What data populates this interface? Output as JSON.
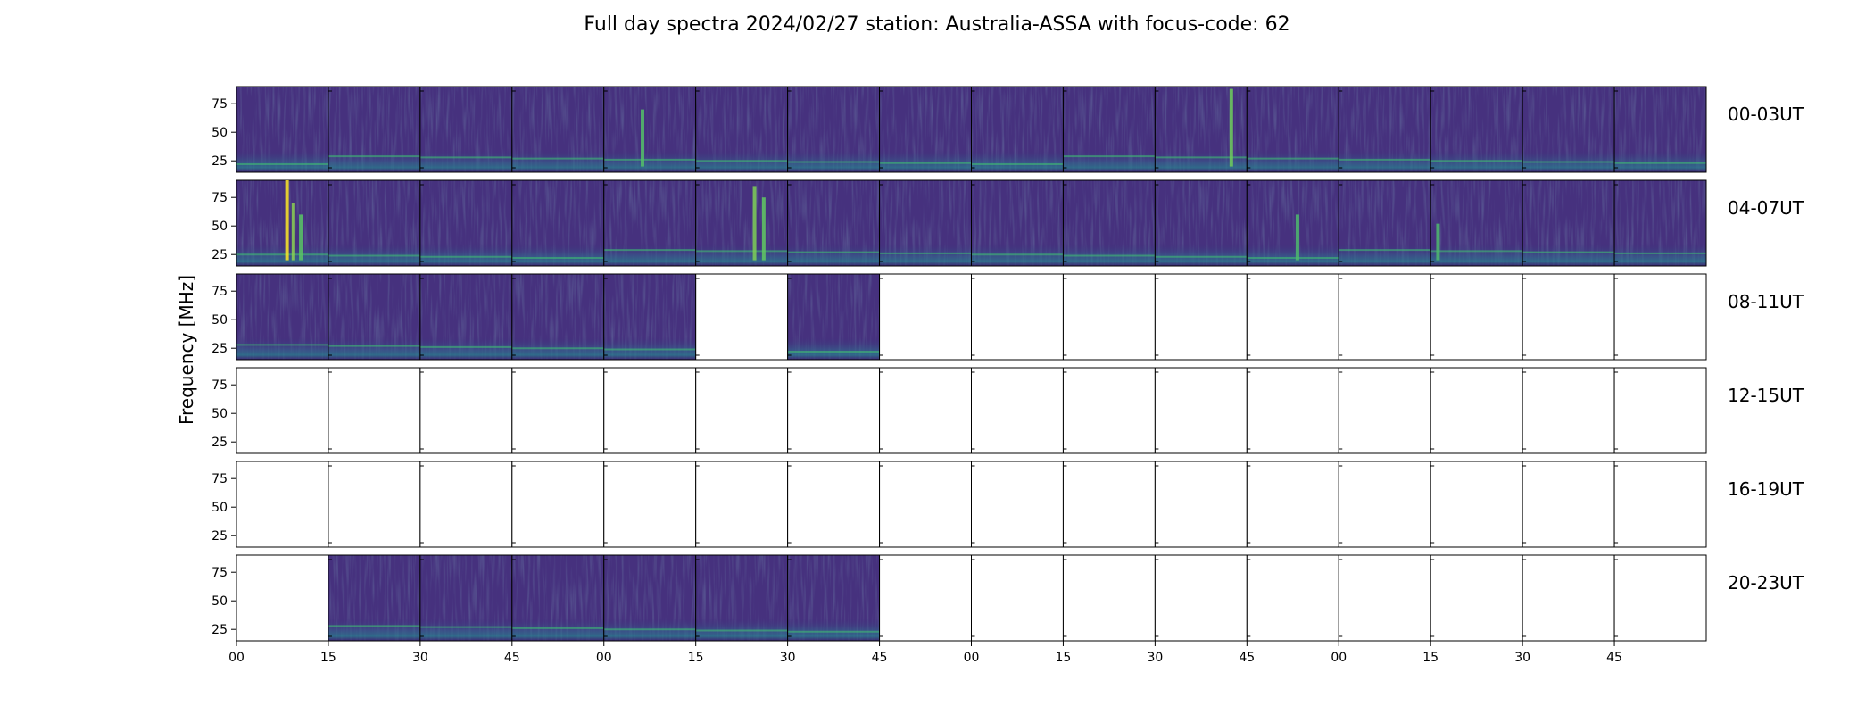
{
  "chart_data": {
    "type": "heatmap",
    "title": "Full day spectra 2024/02/27 station: Australia-ASSA with focus-code: 62",
    "ylabel": "Frequency [MHz]",
    "ylim": [
      15,
      90
    ],
    "yticks": [
      25,
      50,
      75
    ],
    "xtick_labels": [
      "00",
      "15",
      "30",
      "45",
      "00",
      "15",
      "30",
      "45",
      "00",
      "15",
      "30",
      "45",
      "00",
      "15",
      "30",
      "45"
    ],
    "colormap": "viridis",
    "panels_per_row": 16,
    "panel_minutes": 15,
    "rows": [
      {
        "label": "00-03UT",
        "panels": [
          1,
          1,
          1,
          1,
          1,
          1,
          1,
          1,
          1,
          1,
          1,
          1,
          1,
          1,
          1,
          1
        ],
        "bursts": [
          {
            "panel": 4,
            "pos": 0.42,
            "fmax": 70,
            "intensity": 0.35
          },
          {
            "panel": 10,
            "pos": 0.83,
            "fmax": 88,
            "intensity": 0.5
          }
        ]
      },
      {
        "label": "04-07UT",
        "panels": [
          1,
          1,
          1,
          1,
          1,
          1,
          1,
          1,
          1,
          1,
          1,
          1,
          1,
          1,
          1,
          1
        ],
        "bursts": [
          {
            "panel": 0,
            "pos": 0.55,
            "fmax": 90,
            "intensity": 1.0
          },
          {
            "panel": 0,
            "pos": 0.62,
            "fmax": 70,
            "intensity": 0.6
          },
          {
            "panel": 0,
            "pos": 0.7,
            "fmax": 60,
            "intensity": 0.4
          },
          {
            "panel": 5,
            "pos": 0.64,
            "fmax": 85,
            "intensity": 0.55
          },
          {
            "panel": 5,
            "pos": 0.74,
            "fmax": 75,
            "intensity": 0.45
          },
          {
            "panel": 11,
            "pos": 0.55,
            "fmax": 60,
            "intensity": 0.3
          },
          {
            "panel": 13,
            "pos": 0.08,
            "fmax": 52,
            "intensity": 0.3
          }
        ]
      },
      {
        "label": "08-11UT",
        "panels": [
          1,
          1,
          1,
          1,
          1,
          0,
          1,
          0,
          0,
          0,
          0,
          0,
          0,
          0,
          0,
          0
        ],
        "bursts": []
      },
      {
        "label": "12-15UT",
        "panels": [
          0,
          0,
          0,
          0,
          0,
          0,
          0,
          0,
          0,
          0,
          0,
          0,
          0,
          0,
          0,
          0
        ],
        "bursts": []
      },
      {
        "label": "16-19UT",
        "panels": [
          0,
          0,
          0,
          0,
          0,
          0,
          0,
          0,
          0,
          0,
          0,
          0,
          0,
          0,
          0,
          0
        ],
        "bursts": []
      },
      {
        "label": "20-23UT",
        "panels": [
          0,
          1,
          1,
          1,
          1,
          1,
          1,
          0,
          0,
          0,
          0,
          0,
          0,
          0,
          0,
          0
        ],
        "bursts": []
      }
    ]
  }
}
